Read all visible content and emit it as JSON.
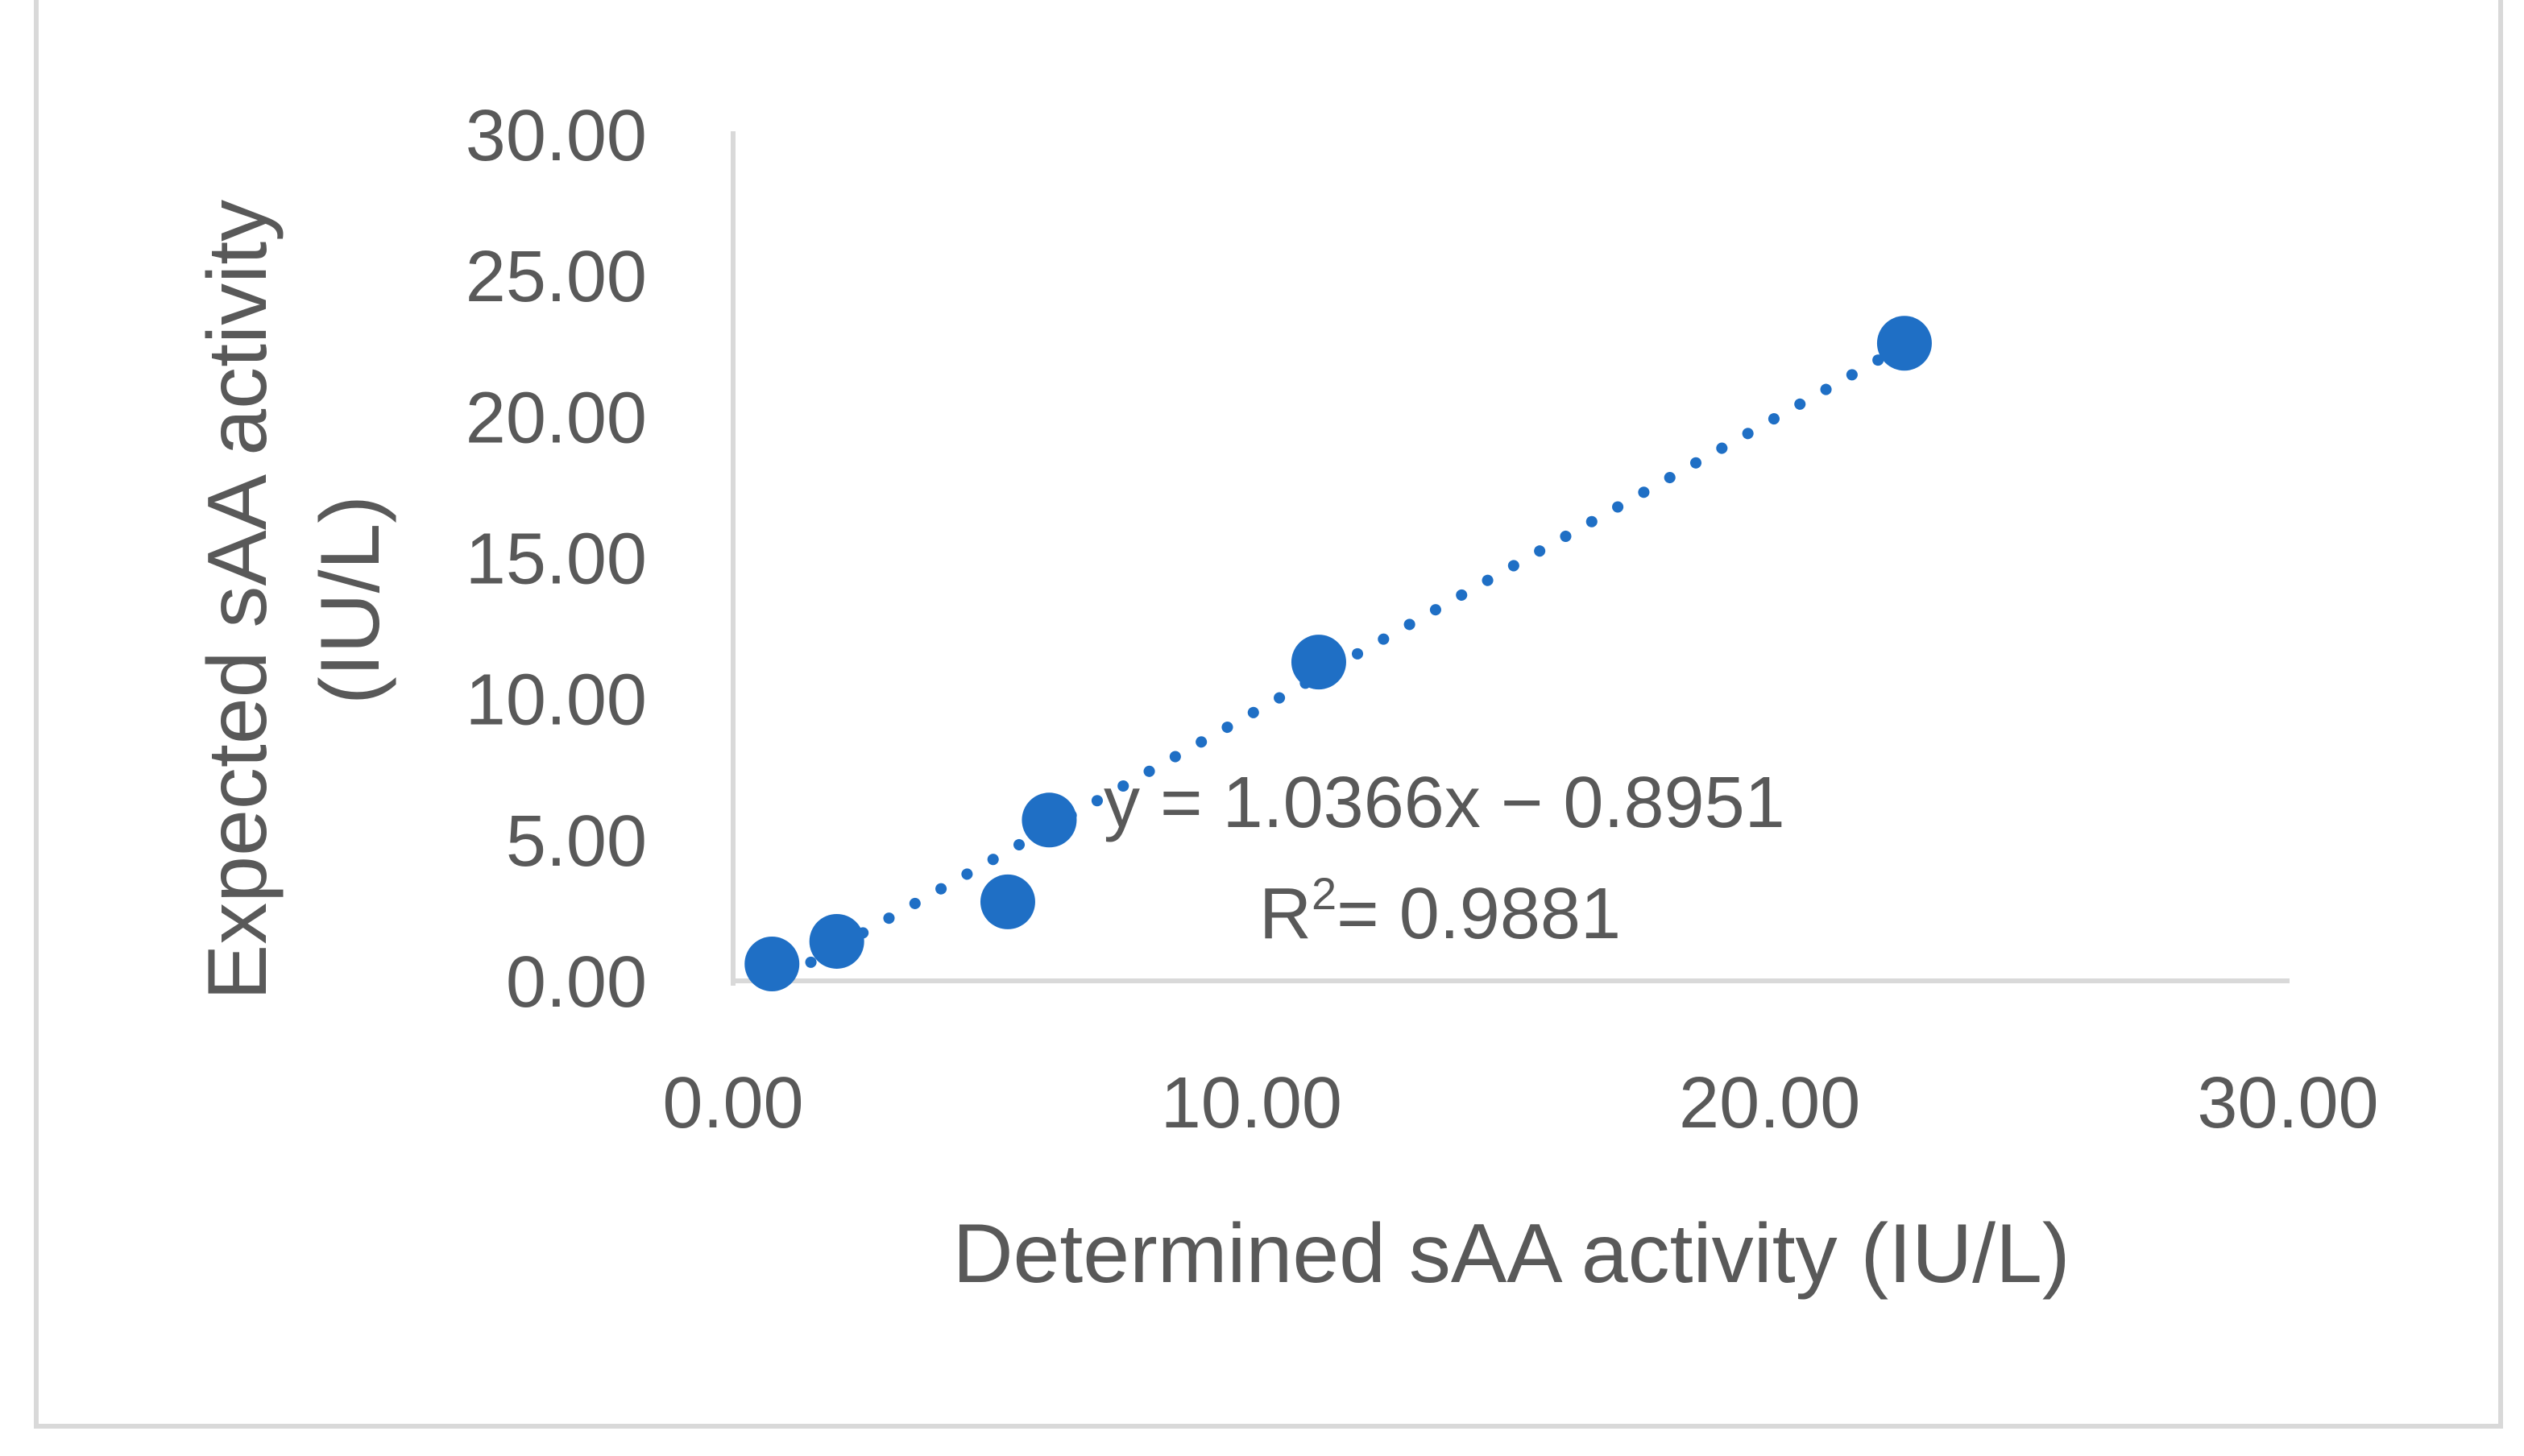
{
  "chart_data": {
    "type": "scatter",
    "xlabel": "Determined sAA activity (IU/L)",
    "ylabel_lines": [
      "Expected sAA activity",
      "(IU/L)"
    ],
    "xlim": [
      0,
      30
    ],
    "ylim": [
      0,
      30
    ],
    "x_ticks": [
      "0.00",
      "10.00",
      "20.00",
      "30.00"
    ],
    "y_ticks": [
      "0.00",
      "5.00",
      "10.00",
      "15.00",
      "20.00",
      "25.00",
      "30.00"
    ],
    "grid": false,
    "legend": "none",
    "series": [
      {
        "color": "#1f6fc5",
        "points": [
          {
            "x": 0.75,
            "y": 0.6
          },
          {
            "x": 2.0,
            "y": 1.4
          },
          {
            "x": 5.3,
            "y": 2.8
          },
          {
            "x": 6.1,
            "y": 5.7
          },
          {
            "x": 11.3,
            "y": 11.3
          },
          {
            "x": 22.6,
            "y": 22.6
          }
        ]
      }
    ],
    "trendline": {
      "type": "linear",
      "style": "dotted",
      "color": "#1f6fc5",
      "slope": 1.0366,
      "intercept": -0.8951,
      "x_range": [
        1.5,
        22.6
      ],
      "equation_text": "y = 1.0366x − 0.8951",
      "r2_prefix": "R",
      "r2_superscript": "2",
      "r2_value": "= 0.9881"
    },
    "axis_color": "#d9d9d9",
    "text_color": "#595959"
  }
}
